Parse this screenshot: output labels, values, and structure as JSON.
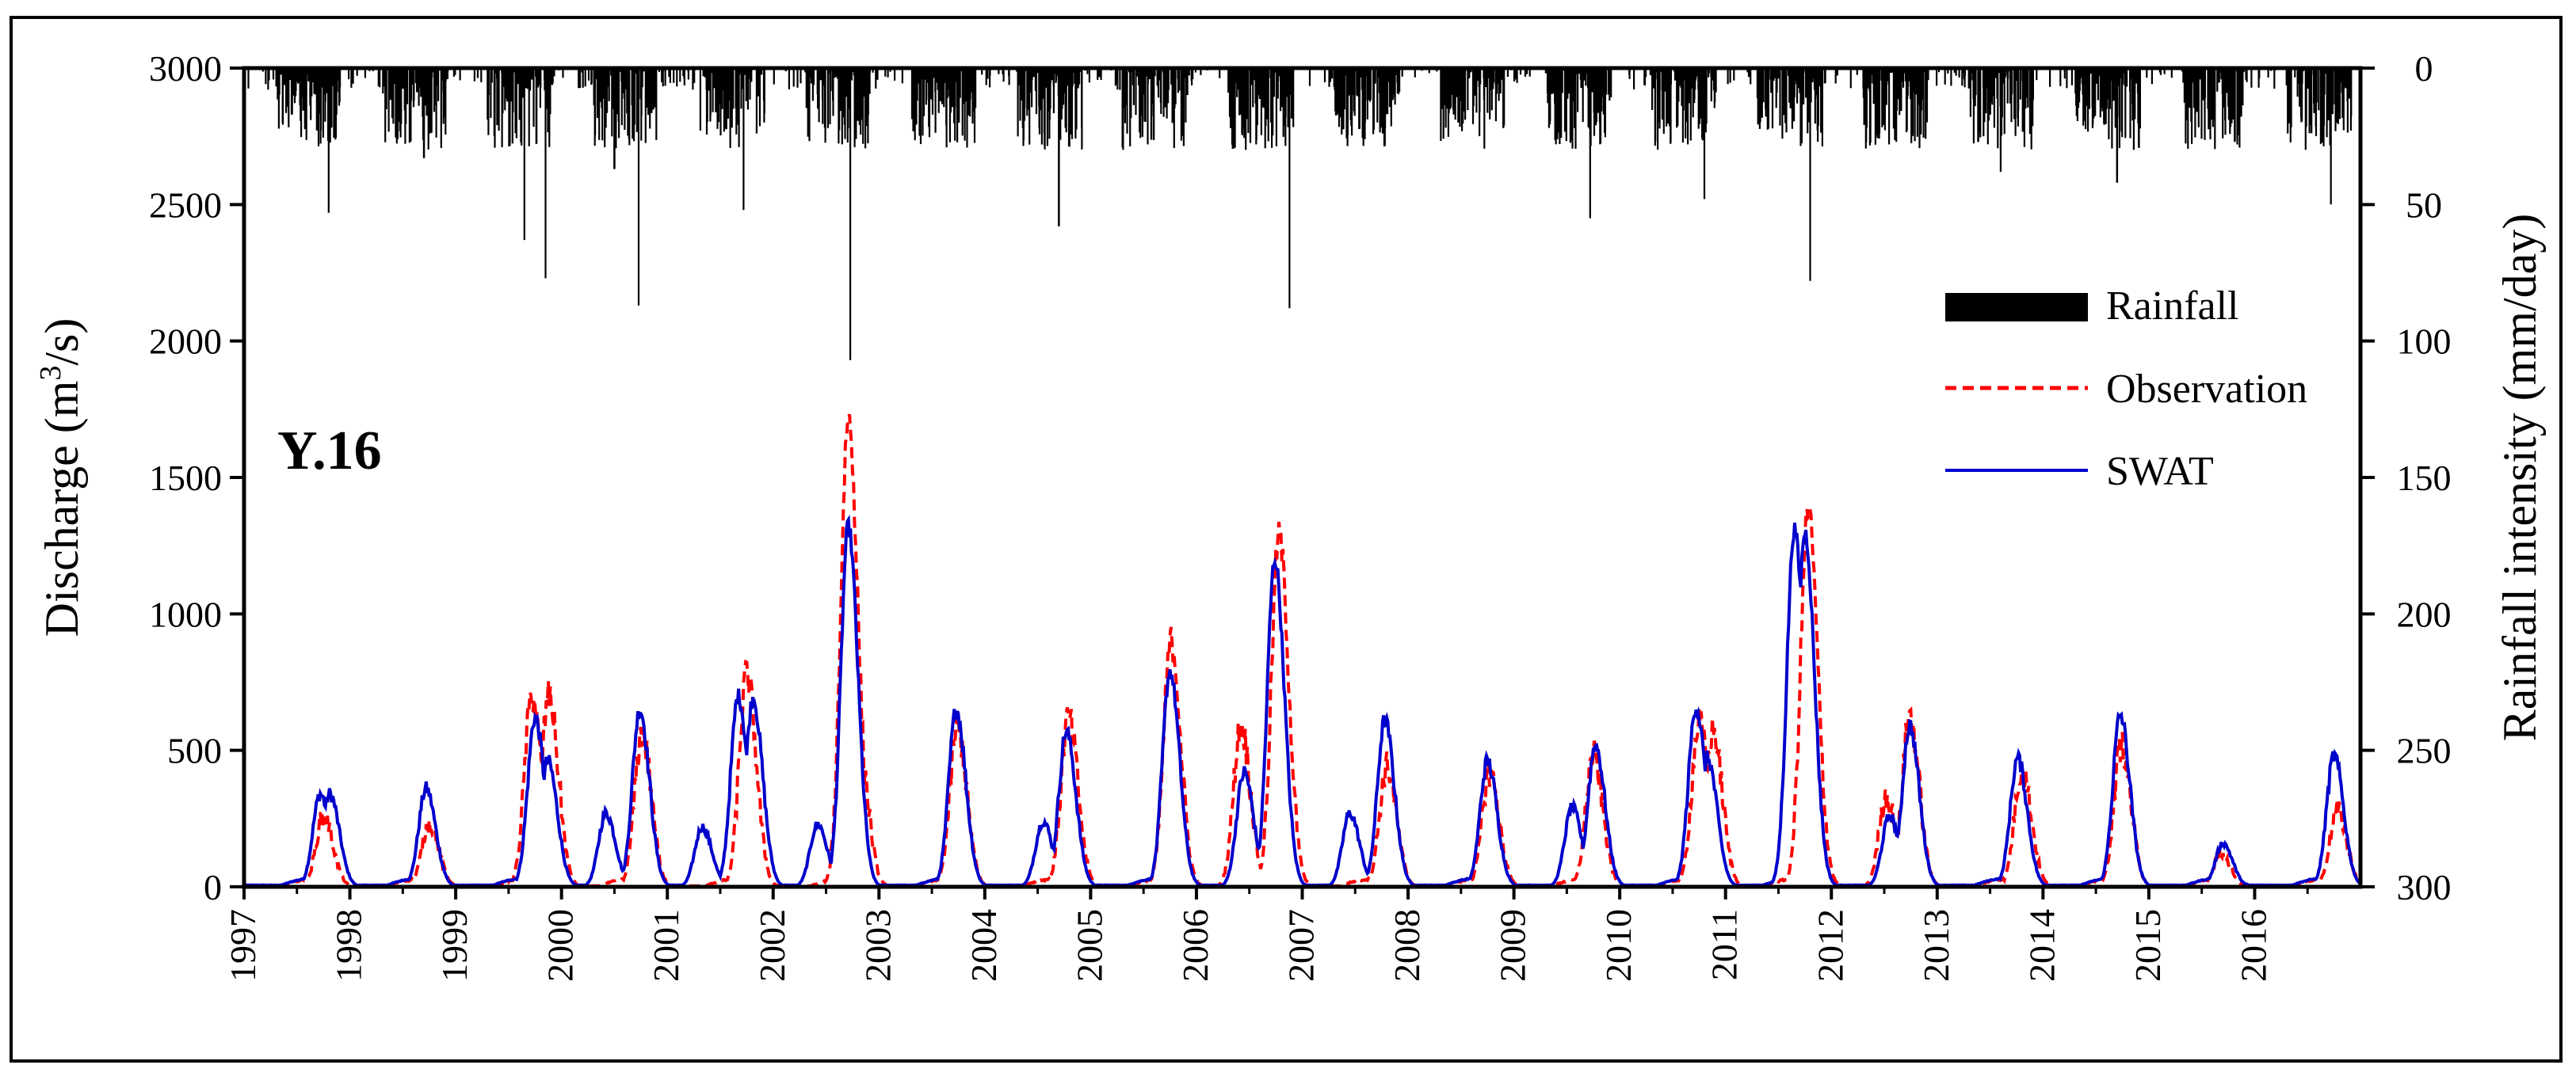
{
  "chart_data": {
    "type": "line",
    "station_label": "Y.16",
    "left_axis": {
      "label_main": "Discharge (m",
      "label_sup": "3",
      "label_end": "/s)",
      "range": [
        0,
        3000
      ],
      "ticks": [
        "0",
        "500",
        "1000",
        "1500",
        "2000",
        "2500",
        "3000"
      ]
    },
    "right_axis": {
      "label": "Rainfall intensity (mm/day)",
      "range": [
        0,
        300
      ],
      "inverted": true,
      "ticks": [
        "0",
        "50",
        "100",
        "150",
        "200",
        "250",
        "300"
      ]
    },
    "x_axis": {
      "range": [
        1997,
        2017
      ],
      "ticks": [
        "1997",
        "1998",
        "1999",
        "2000",
        "2001",
        "2002",
        "2003",
        "2004",
        "2005",
        "2006",
        "2007",
        "2008",
        "2009",
        "2010",
        "2011",
        "2012",
        "2013",
        "2014",
        "2015",
        "2016"
      ]
    },
    "legend": {
      "placement": "right",
      "rainfall": "Rainfall",
      "observation": "Observation",
      "swat": "SWAT"
    },
    "colors": {
      "rainfall": "#000000",
      "observation": "#ff0000",
      "swat": "#0000cc"
    },
    "series": [
      {
        "name": "SWAT",
        "peaks": [
          {
            "t": 1997.72,
            "v": 340
          },
          {
            "t": 1997.81,
            "v": 340
          },
          {
            "t": 1998.72,
            "v": 360
          },
          {
            "t": 1999.75,
            "v": 620
          },
          {
            "t": 1999.87,
            "v": 460
          },
          {
            "t": 2000.42,
            "v": 270
          },
          {
            "t": 2000.74,
            "v": 650
          },
          {
            "t": 2001.33,
            "v": 220
          },
          {
            "t": 2001.67,
            "v": 700
          },
          {
            "t": 2001.81,
            "v": 690
          },
          {
            "t": 2002.42,
            "v": 230
          },
          {
            "t": 2002.71,
            "v": 1320
          },
          {
            "t": 2003.73,
            "v": 650
          },
          {
            "t": 2004.55,
            "v": 240
          },
          {
            "t": 2004.77,
            "v": 570
          },
          {
            "t": 2005.75,
            "v": 790
          },
          {
            "t": 2006.45,
            "v": 420
          },
          {
            "t": 2006.74,
            "v": 1200
          },
          {
            "t": 2007.45,
            "v": 270
          },
          {
            "t": 2007.78,
            "v": 610
          },
          {
            "t": 2008.75,
            "v": 460
          },
          {
            "t": 2009.55,
            "v": 290
          },
          {
            "t": 2009.77,
            "v": 520
          },
          {
            "t": 2010.72,
            "v": 660
          },
          {
            "t": 2010.83,
            "v": 470
          },
          {
            "t": 2011.65,
            "v": 1310
          },
          {
            "t": 2011.75,
            "v": 1300
          },
          {
            "t": 2012.55,
            "v": 260
          },
          {
            "t": 2012.74,
            "v": 590
          },
          {
            "t": 2013.76,
            "v": 470
          },
          {
            "t": 2014.73,
            "v": 630
          },
          {
            "t": 2015.7,
            "v": 160
          },
          {
            "t": 2016.75,
            "v": 480
          }
        ]
      },
      {
        "name": "Observation",
        "peaks": [
          {
            "t": 1997.75,
            "v": 260
          },
          {
            "t": 1998.75,
            "v": 230
          },
          {
            "t": 1999.72,
            "v": 700
          },
          {
            "t": 1999.88,
            "v": 700
          },
          {
            "t": 2000.76,
            "v": 560
          },
          {
            "t": 2001.75,
            "v": 780
          },
          {
            "t": 2002.71,
            "v": 1720
          },
          {
            "t": 2002.8,
            "v": 560
          },
          {
            "t": 2003.74,
            "v": 580
          },
          {
            "t": 2004.79,
            "v": 620
          },
          {
            "t": 2005.76,
            "v": 900
          },
          {
            "t": 2006.42,
            "v": 590
          },
          {
            "t": 2006.78,
            "v": 1290
          },
          {
            "t": 2007.8,
            "v": 440
          },
          {
            "t": 2008.77,
            "v": 420
          },
          {
            "t": 2009.75,
            "v": 480
          },
          {
            "t": 2010.75,
            "v": 600
          },
          {
            "t": 2010.88,
            "v": 570
          },
          {
            "t": 2011.78,
            "v": 1380
          },
          {
            "t": 2012.52,
            "v": 330
          },
          {
            "t": 2012.74,
            "v": 630
          },
          {
            "t": 2013.8,
            "v": 430
          },
          {
            "t": 2014.74,
            "v": 520
          },
          {
            "t": 2015.68,
            "v": 120
          },
          {
            "t": 2016.78,
            "v": 280
          }
        ]
      }
    ],
    "rainfall_peaks_mm_day": [
      {
        "t": 1997.8,
        "v": 53
      },
      {
        "t": 1998.7,
        "v": 33
      },
      {
        "t": 1999.65,
        "v": 63
      },
      {
        "t": 1999.85,
        "v": 77
      },
      {
        "t": 2000.5,
        "v": 37
      },
      {
        "t": 2000.73,
        "v": 87
      },
      {
        "t": 2001.72,
        "v": 52
      },
      {
        "t": 2002.73,
        "v": 107
      },
      {
        "t": 2004.7,
        "v": 58
      },
      {
        "t": 2006.88,
        "v": 88
      },
      {
        "t": 2008.9,
        "v": 22
      },
      {
        "t": 2009.72,
        "v": 55
      },
      {
        "t": 2010.8,
        "v": 48
      },
      {
        "t": 2011.8,
        "v": 78
      },
      {
        "t": 2013.6,
        "v": 38
      },
      {
        "t": 2014.7,
        "v": 42
      },
      {
        "t": 2016.72,
        "v": 50
      }
    ]
  }
}
